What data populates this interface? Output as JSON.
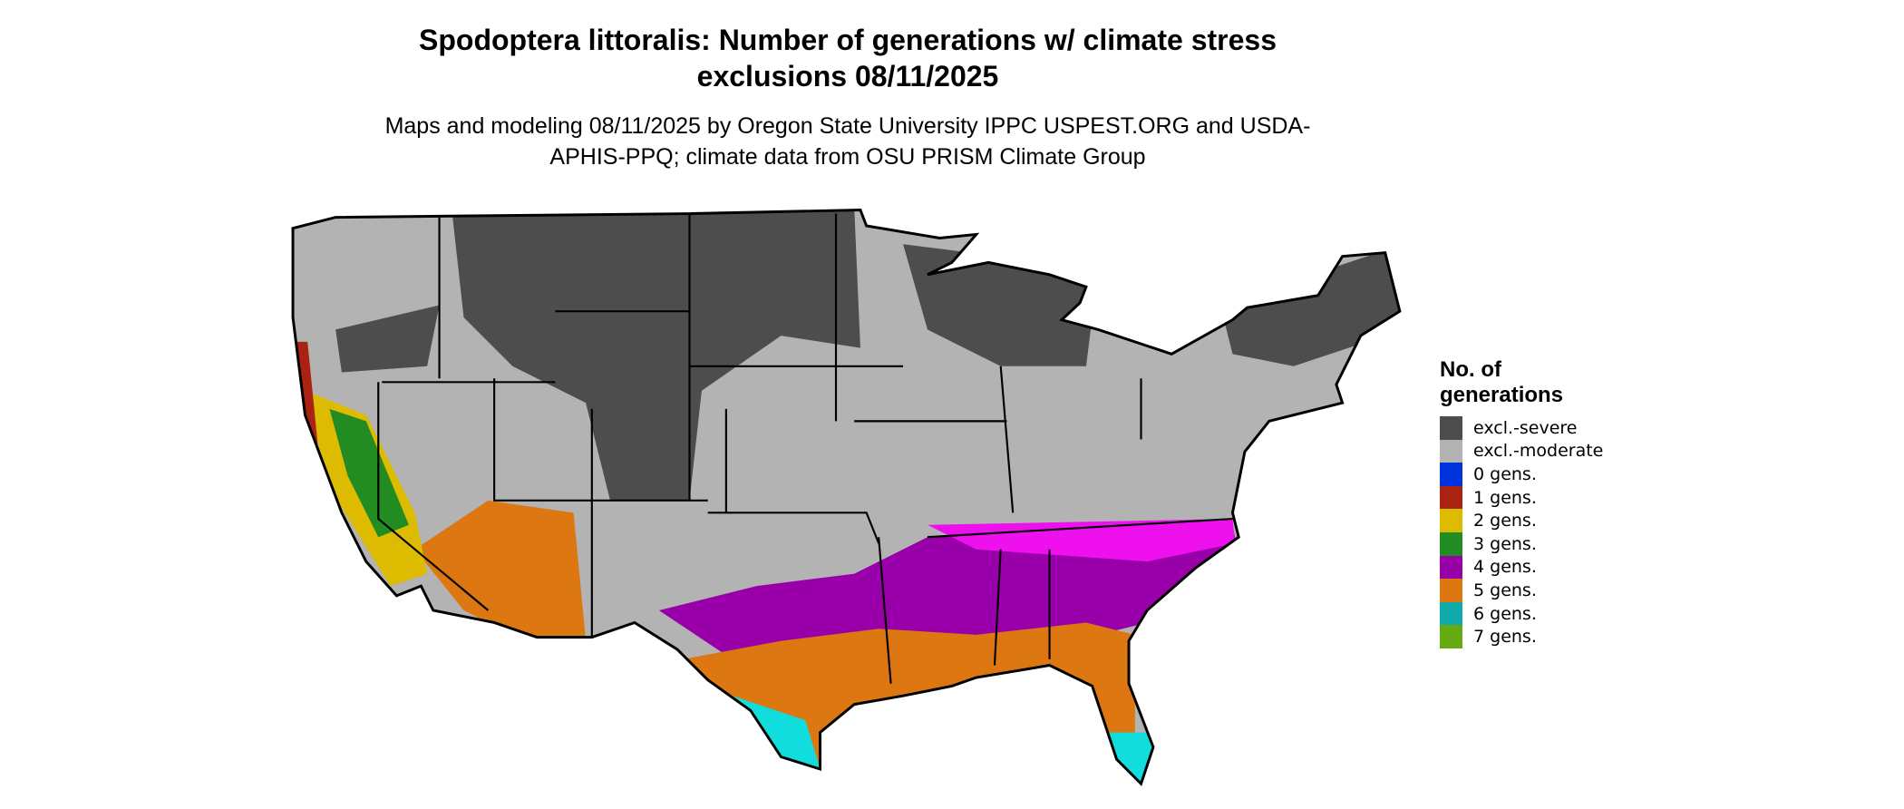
{
  "header": {
    "title": "Spodoptera littoralis: Number of generations w/ climate stress exclusions 08/11/2025",
    "subtitle": "Maps and modeling 08/11/2025 by Oregon State University IPPC USPEST.ORG and USDA-APHIS-PPQ; climate data from OSU PRISM Climate Group"
  },
  "legend": {
    "title": "No. of generations",
    "items": [
      {
        "label": "excl.-severe",
        "color": "#4d4d4d"
      },
      {
        "label": "excl.-moderate",
        "color": "#b3b3b3"
      },
      {
        "label": "0 gens.",
        "color": "#0033dd"
      },
      {
        "label": "1 gens.",
        "color": "#aa2211"
      },
      {
        "label": "2 gens.",
        "color": "#ddbb00"
      },
      {
        "label": "3 gens.",
        "color": "#228b22"
      },
      {
        "label": "4 gens.",
        "color": "#9900aa"
      },
      {
        "label": "5 gens.",
        "color": "#dd7711"
      },
      {
        "label": "6 gens.",
        "color": "#11aaaa"
      },
      {
        "label": "7 gens.",
        "color": "#66aa11"
      }
    ]
  }
}
